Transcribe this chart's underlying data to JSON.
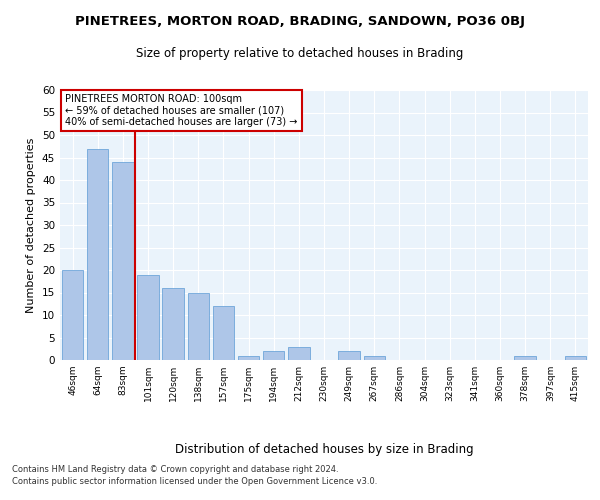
{
  "title": "PINETREES, MORTON ROAD, BRADING, SANDOWN, PO36 0BJ",
  "subtitle": "Size of property relative to detached houses in Brading",
  "xlabel": "Distribution of detached houses by size in Brading",
  "ylabel": "Number of detached properties",
  "categories": [
    "46sqm",
    "64sqm",
    "83sqm",
    "101sqm",
    "120sqm",
    "138sqm",
    "157sqm",
    "175sqm",
    "194sqm",
    "212sqm",
    "230sqm",
    "249sqm",
    "267sqm",
    "286sqm",
    "304sqm",
    "323sqm",
    "341sqm",
    "360sqm",
    "378sqm",
    "397sqm",
    "415sqm"
  ],
  "values": [
    20,
    47,
    44,
    19,
    16,
    15,
    12,
    1,
    2,
    3,
    0,
    2,
    1,
    0,
    0,
    0,
    0,
    0,
    1,
    0,
    1
  ],
  "bar_color": "#aec6e8",
  "bar_edge_color": "#5b9bd5",
  "bar_width": 0.85,
  "ylim": [
    0,
    60
  ],
  "yticks": [
    0,
    5,
    10,
    15,
    20,
    25,
    30,
    35,
    40,
    45,
    50,
    55,
    60
  ],
  "redline_x": 2.5,
  "annotation_text": "PINETREES MORTON ROAD: 100sqm\n← 59% of detached houses are smaller (107)\n40% of semi-detached houses are larger (73) →",
  "annotation_box_color": "#ffffff",
  "annotation_box_edge_color": "#cc0000",
  "background_color": "#eaf3fb",
  "footer_line1": "Contains HM Land Registry data © Crown copyright and database right 2024.",
  "footer_line2": "Contains public sector information licensed under the Open Government Licence v3.0."
}
